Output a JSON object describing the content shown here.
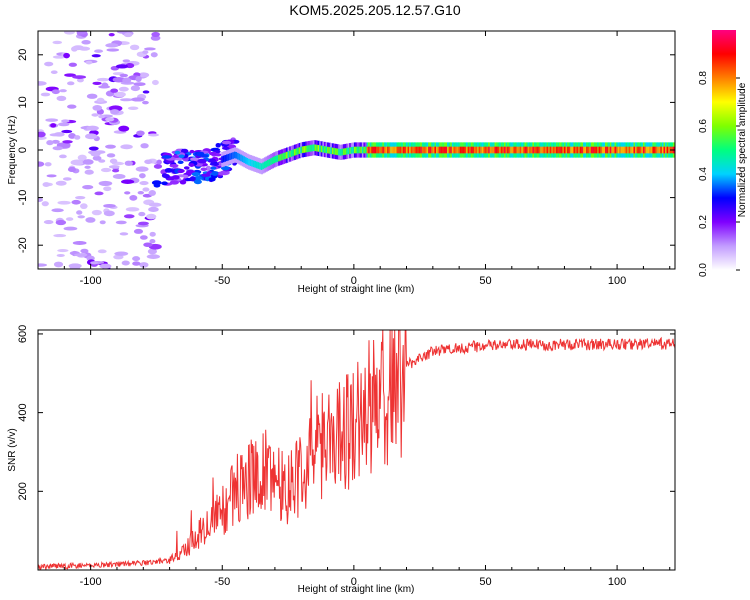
{
  "title": "KOM5.2025.205.12.57.G10",
  "chart_data": [
    {
      "type": "heatmap",
      "xlabel": "Height of straight line (km)",
      "ylabel": "Frequency (Hz)",
      "xlim": [
        -120,
        122
      ],
      "ylim": [
        -25,
        25
      ],
      "xticks": [
        -100,
        -50,
        0,
        50,
        100
      ],
      "yticks": [
        -20,
        -10,
        0,
        10,
        20
      ],
      "colorbar": {
        "label": "Normalized spectral amplitude",
        "range": [
          0.0,
          1.0
        ],
        "ticks": [
          "0.0",
          "0.2",
          "0.4",
          "0.6",
          "0.8"
        ],
        "colormap": [
          "#ffffff",
          "#c29cff",
          "#7f00ff",
          "#0000ff",
          "#00d2ff",
          "#00ff7f",
          "#7fff00",
          "#ffff00",
          "#ff7f00",
          "#ff0000",
          "#ff0080"
        ]
      },
      "ridge_frequency": {
        "x": [
          -75,
          -65,
          -55,
          -50,
          -45,
          -40,
          -35,
          -30,
          -25,
          -20,
          -15,
          -10,
          -5,
          0,
          5,
          10,
          20,
          30,
          50,
          80,
          122
        ],
        "y": [
          -4,
          -3.5,
          -3,
          -2,
          -1,
          -2.5,
          -3.5,
          -2,
          -1,
          0,
          0.5,
          0,
          -0.5,
          0,
          0,
          0,
          0,
          0,
          0,
          0,
          0
        ]
      }
    },
    {
      "type": "line",
      "xlabel": "Height of straight line (km)",
      "ylabel": "SNR (v/v)",
      "xlim": [
        -120,
        122
      ],
      "ylim": [
        0,
        610
      ],
      "xticks": [
        -100,
        -50,
        0,
        50,
        100
      ],
      "yticks": [
        200,
        400,
        600
      ],
      "color": "#ee3333",
      "envelope": {
        "x": [
          -120,
          -100,
          -80,
          -70,
          -65,
          -60,
          -55,
          -50,
          -45,
          -40,
          -35,
          -30,
          -25,
          -20,
          -15,
          -10,
          -5,
          0,
          5,
          10,
          15,
          20,
          25,
          30,
          40,
          50,
          60,
          80,
          100,
          122
        ],
        "y": [
          8,
          12,
          18,
          25,
          45,
          80,
          120,
          150,
          200,
          230,
          250,
          240,
          210,
          250,
          300,
          330,
          350,
          370,
          400,
          440,
          480,
          520,
          540,
          555,
          565,
          570,
          572,
          573,
          574,
          575
        ]
      }
    }
  ]
}
